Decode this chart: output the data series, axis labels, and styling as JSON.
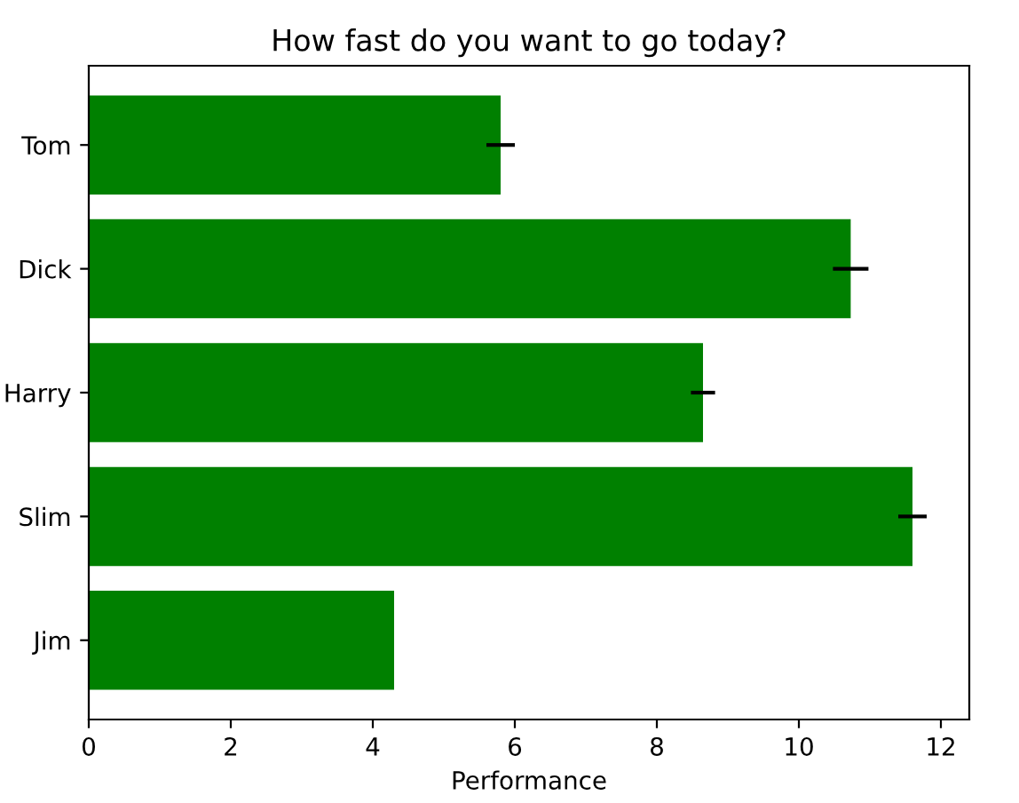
{
  "chart_data": {
    "type": "bar",
    "orientation": "horizontal",
    "title": "How fast do you want to go today?",
    "xlabel": "Performance",
    "categories": [
      "Tom",
      "Dick",
      "Harry",
      "Slim",
      "Jim"
    ],
    "values": [
      5.8,
      10.73,
      8.65,
      11.6,
      4.3
    ],
    "errors": [
      0.2,
      0.25,
      0.17,
      0.2,
      null
    ],
    "color": "#008000",
    "xlim": [
      0,
      12.4
    ],
    "xticks": [
      0,
      2,
      4,
      6,
      8,
      10,
      12
    ],
    "grid": false
  }
}
